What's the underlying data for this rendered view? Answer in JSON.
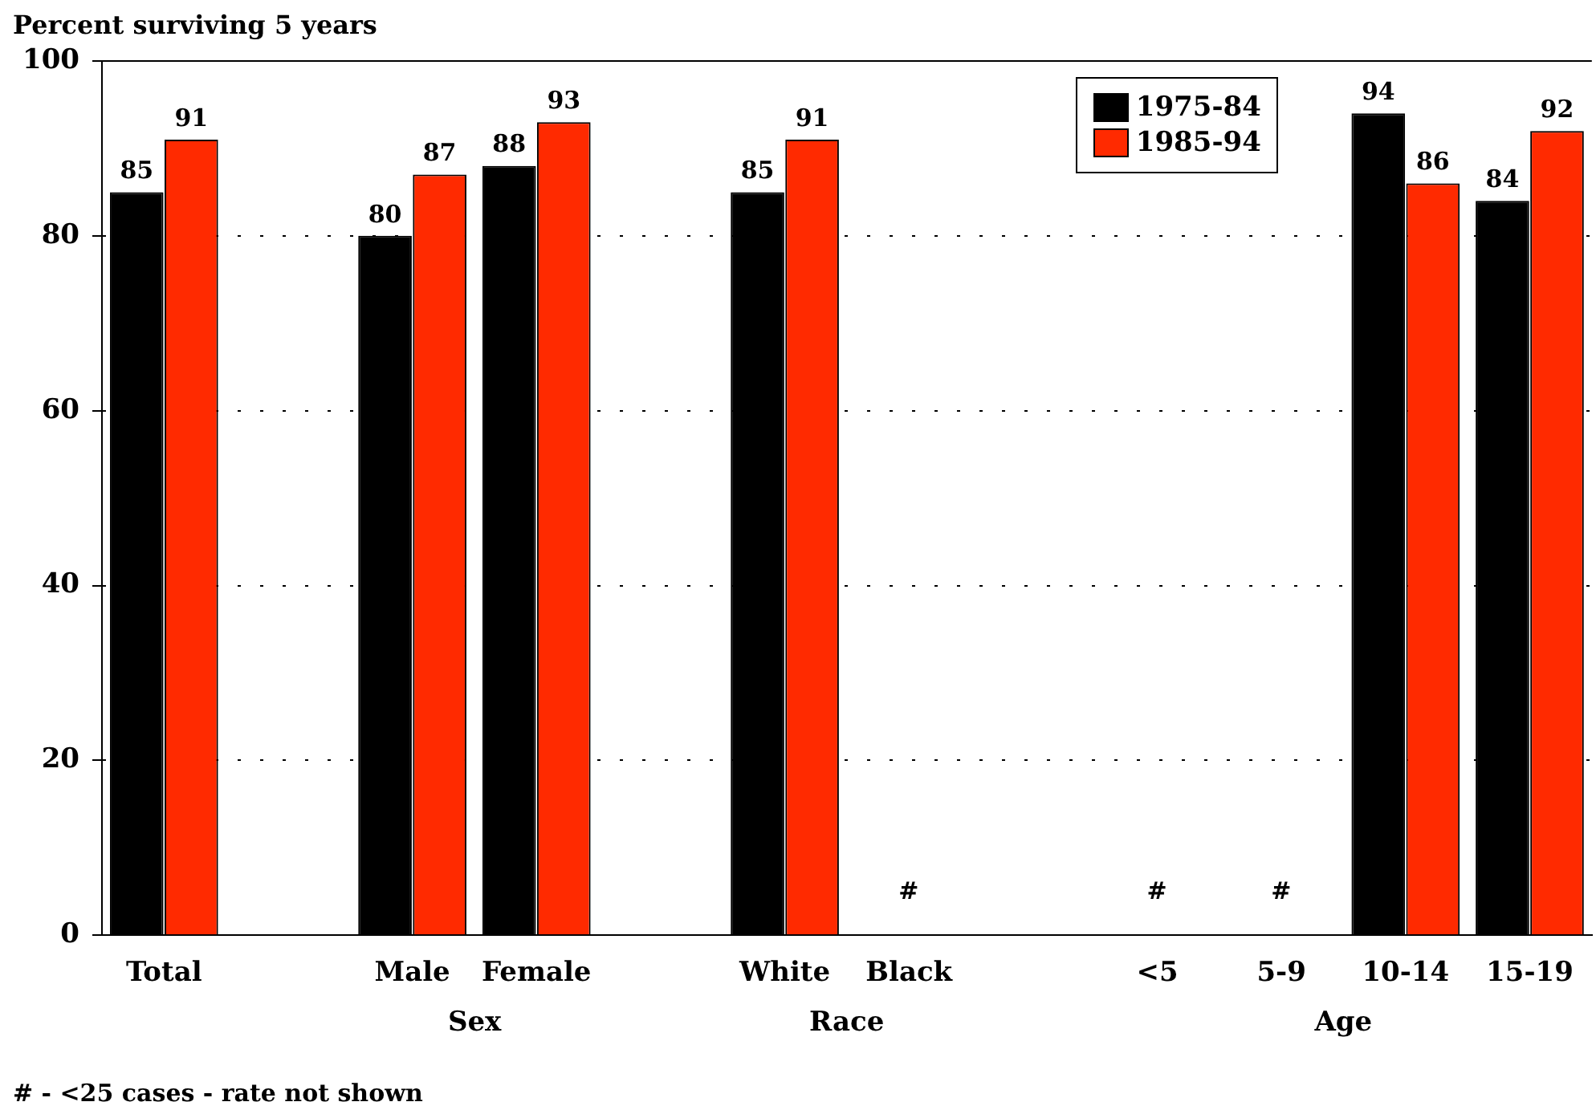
{
  "chart_data": {
    "type": "bar",
    "ylabel": "Percent surviving 5 years",
    "categories": [
      "Total",
      null,
      "Male",
      "Female",
      null,
      "White",
      "Black",
      null,
      "<5",
      "5-9",
      "10-14",
      "15-19"
    ],
    "series": [
      {
        "name": "1975-84",
        "color": "#000000",
        "values": [
          85,
          null,
          80,
          88,
          null,
          85,
          null,
          null,
          null,
          null,
          94,
          84
        ]
      },
      {
        "name": "1985-94",
        "color": "#ff2a00",
        "values": [
          91,
          null,
          87,
          93,
          null,
          91,
          null,
          null,
          null,
          null,
          86,
          92
        ]
      }
    ],
    "ylim": [
      0,
      100
    ],
    "yticks": [
      0,
      20,
      40,
      60,
      80,
      100
    ],
    "grid": "y",
    "line_style": "dotted",
    "legend": "top right",
    "data_labels": true,
    "annotations": [
      "Sex",
      "Race",
      "Age",
      "# - <25 cases - rate not shown",
      "#",
      "#",
      "#"
    ]
  }
}
